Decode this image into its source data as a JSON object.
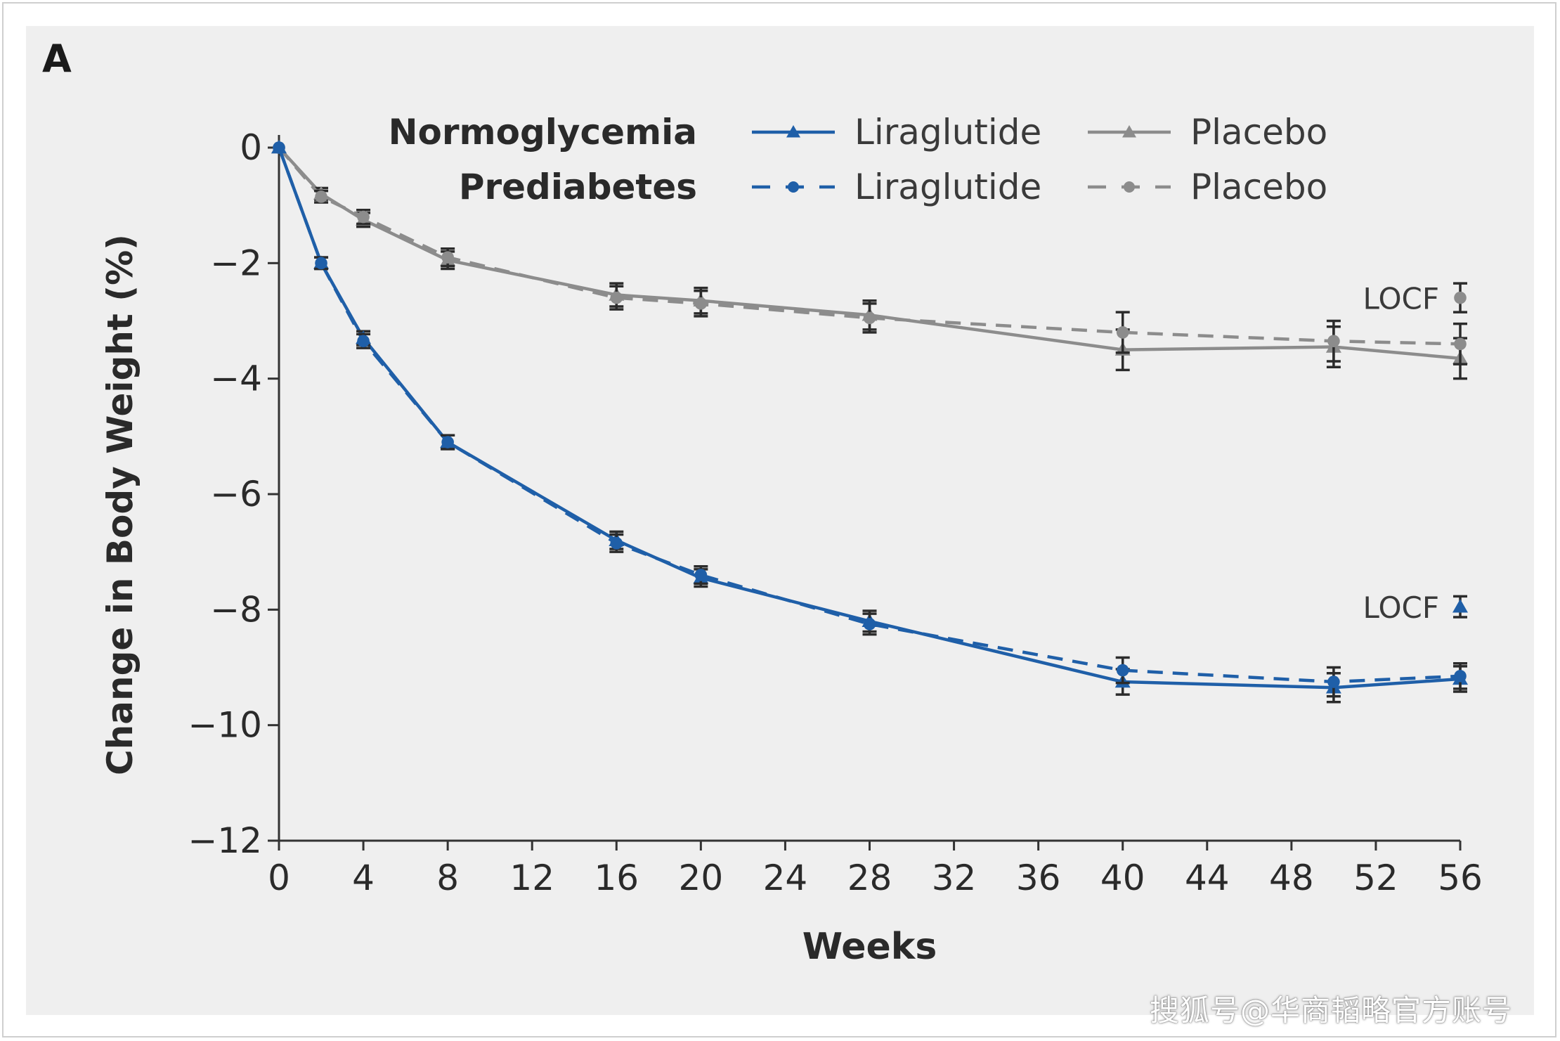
{
  "panel_label": "A",
  "watermark": "搜狐号@华商韬略官方账号",
  "colors": {
    "liraglutide": "#1f5fa8",
    "placebo": "#8c8c8c",
    "error_bar": "#2b2b2b",
    "axis": "#333333",
    "panel_bg": "#efefef"
  },
  "chart_data": {
    "type": "line",
    "title": "",
    "xlabel": "Weeks",
    "ylabel": "Change in Body Weight (%)",
    "xlim": [
      0,
      56
    ],
    "ylim": [
      -12,
      0
    ],
    "xticks": [
      0,
      4,
      8,
      12,
      16,
      20,
      24,
      28,
      32,
      36,
      40,
      44,
      48,
      52,
      56
    ],
    "yticks": [
      0,
      -2,
      -4,
      -6,
      -8,
      -10,
      -12
    ],
    "ytick_labels": [
      "0",
      "−2",
      "−4",
      "−6",
      "−8",
      "−10",
      "−12"
    ],
    "grid": false,
    "legend": {
      "placement": "top-right",
      "rows": [
        {
          "group": "Normoglycemia",
          "entries": [
            "Liraglutide",
            "Placebo"
          ],
          "style": "solid"
        },
        {
          "group": "Prediabetes",
          "entries": [
            "Liraglutide",
            "Placebo"
          ],
          "style": "dashed"
        }
      ]
    },
    "series": [
      {
        "group": "Normoglycemia",
        "name": "Liraglutide",
        "color": "#1f5fa8",
        "style": "solid",
        "marker": "triangle",
        "x": [
          0,
          2,
          4,
          8,
          16,
          20,
          28,
          40,
          50,
          56
        ],
        "y": [
          0,
          -2.0,
          -3.3,
          -5.1,
          -6.8,
          -7.45,
          -8.2,
          -9.25,
          -9.35,
          -9.2
        ],
        "err": [
          0,
          0.1,
          0.12,
          0.12,
          0.15,
          0.15,
          0.18,
          0.22,
          0.25,
          0.22
        ]
      },
      {
        "group": "Prediabetes",
        "name": "Liraglutide",
        "color": "#1f5fa8",
        "style": "dashed",
        "marker": "circle",
        "x": [
          0,
          2,
          4,
          8,
          16,
          20,
          28,
          40,
          50,
          56
        ],
        "y": [
          0,
          -2.0,
          -3.35,
          -5.1,
          -6.85,
          -7.4,
          -8.25,
          -9.05,
          -9.25,
          -9.15
        ],
        "err": [
          0,
          0.1,
          0.12,
          0.12,
          0.15,
          0.15,
          0.18,
          0.22,
          0.25,
          0.22
        ]
      },
      {
        "group": "Normoglycemia",
        "name": "Placebo",
        "color": "#8c8c8c",
        "style": "solid",
        "marker": "triangle",
        "x": [
          0,
          2,
          4,
          8,
          16,
          20,
          28,
          40,
          50,
          56
        ],
        "y": [
          0,
          -0.8,
          -1.25,
          -1.95,
          -2.55,
          -2.65,
          -2.9,
          -3.5,
          -3.45,
          -3.65
        ],
        "err": [
          0,
          0.1,
          0.12,
          0.15,
          0.2,
          0.22,
          0.25,
          0.35,
          0.35,
          0.35
        ]
      },
      {
        "group": "Prediabetes",
        "name": "Placebo",
        "color": "#8c8c8c",
        "style": "dashed",
        "marker": "circle",
        "x": [
          0,
          2,
          4,
          8,
          16,
          20,
          28,
          40,
          50,
          56
        ],
        "y": [
          0,
          -0.85,
          -1.2,
          -1.9,
          -2.6,
          -2.7,
          -2.95,
          -3.2,
          -3.35,
          -3.4
        ],
        "err": [
          0,
          0.1,
          0.12,
          0.15,
          0.2,
          0.22,
          0.25,
          0.35,
          0.35,
          0.35
        ]
      }
    ],
    "locf": [
      {
        "label": "LOCF",
        "x": 56,
        "values": [
          {
            "y": -2.6,
            "err": 0.25,
            "color": "#8c8c8c",
            "marker": "circle"
          },
          {
            "y": -7.95,
            "err": 0.18,
            "color": "#1f5fa8",
            "marker": "triangle"
          }
        ]
      }
    ]
  }
}
